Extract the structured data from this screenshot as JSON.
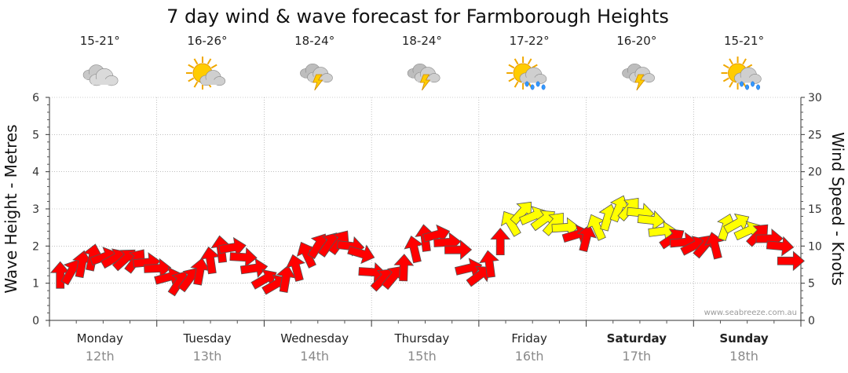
{
  "chart_data": {
    "type": "line",
    "title": "7 day wind & wave forecast for Farmborough Heights",
    "ylabel_left": "Wave Height - Metres",
    "ylabel_right": "Wind Speed - Knots",
    "ylim_left": [
      0,
      6
    ],
    "ylim_right": [
      0,
      30
    ],
    "left_ticks": [
      "0",
      "1",
      "2",
      "3",
      "4",
      "5",
      "6"
    ],
    "right_ticks": [
      "0",
      "5",
      "10",
      "15",
      "20",
      "25",
      "30"
    ],
    "grid": true,
    "credit": "www.seabreeze.com.au",
    "days": [
      {
        "name": "Monday",
        "date": "12th",
        "temp": "15-21°",
        "icon": "cloudy-icon",
        "bold": false
      },
      {
        "name": "Tuesday",
        "date": "13th",
        "temp": "16-26°",
        "icon": "partly-sunny-icon",
        "bold": false
      },
      {
        "name": "Wednesday",
        "date": "14th",
        "temp": "18-24°",
        "icon": "thunderstorm-icon",
        "bold": false
      },
      {
        "name": "Thursday",
        "date": "15th",
        "temp": "18-24°",
        "icon": "thunderstorm-icon",
        "bold": false
      },
      {
        "name": "Friday",
        "date": "16th",
        "temp": "17-22°",
        "icon": "sun-showers-icon",
        "bold": false
      },
      {
        "name": "Saturday",
        "date": "17th",
        "temp": "16-20°",
        "icon": "thunderstorm-icon",
        "bold": true
      },
      {
        "name": "Sunday",
        "date": "18th",
        "temp": "15-21°",
        "icon": "sun-showers-icon",
        "bold": true
      }
    ],
    "colors": {
      "light_wind": "#ff0000",
      "strong_wind": "#ffff00",
      "arrow_outline": "#555555",
      "grid": "#999999"
    },
    "series": [
      {
        "name": "wind",
        "note": "x = day offset from Monday 00:00 (days); y = wind speed (knots)",
        "points": [
          {
            "x": 0.1,
            "y": 6.0,
            "c": "red"
          },
          {
            "x": 0.2,
            "y": 6.5,
            "c": "red"
          },
          {
            "x": 0.3,
            "y": 7.5,
            "c": "red"
          },
          {
            "x": 0.4,
            "y": 8.4,
            "c": "red"
          },
          {
            "x": 0.5,
            "y": 8.5,
            "c": "red"
          },
          {
            "x": 0.6,
            "y": 8.3,
            "c": "red"
          },
          {
            "x": 0.7,
            "y": 8.2,
            "c": "red"
          },
          {
            "x": 0.8,
            "y": 8.0,
            "c": "red"
          },
          {
            "x": 0.9,
            "y": 7.8,
            "c": "red"
          },
          {
            "x": 1.0,
            "y": 7.0,
            "c": "red"
          },
          {
            "x": 1.1,
            "y": 5.8,
            "c": "red"
          },
          {
            "x": 1.2,
            "y": 5.0,
            "c": "red"
          },
          {
            "x": 1.3,
            "y": 5.5,
            "c": "red"
          },
          {
            "x": 1.4,
            "y": 6.5,
            "c": "red"
          },
          {
            "x": 1.5,
            "y": 8.0,
            "c": "red"
          },
          {
            "x": 1.6,
            "y": 9.5,
            "c": "red"
          },
          {
            "x": 1.7,
            "y": 9.8,
            "c": "red"
          },
          {
            "x": 1.8,
            "y": 8.5,
            "c": "red"
          },
          {
            "x": 1.9,
            "y": 7.0,
            "c": "red"
          },
          {
            "x": 2.0,
            "y": 5.5,
            "c": "red"
          },
          {
            "x": 2.1,
            "y": 4.8,
            "c": "red"
          },
          {
            "x": 2.2,
            "y": 5.5,
            "c": "red"
          },
          {
            "x": 2.3,
            "y": 7.0,
            "c": "red"
          },
          {
            "x": 2.4,
            "y": 8.8,
            "c": "red"
          },
          {
            "x": 2.5,
            "y": 10.0,
            "c": "red"
          },
          {
            "x": 2.6,
            "y": 10.2,
            "c": "red"
          },
          {
            "x": 2.7,
            "y": 10.5,
            "c": "red"
          },
          {
            "x": 2.8,
            "y": 10.0,
            "c": "red"
          },
          {
            "x": 2.9,
            "y": 9.0,
            "c": "red"
          },
          {
            "x": 3.0,
            "y": 6.5,
            "c": "red"
          },
          {
            "x": 3.1,
            "y": 5.5,
            "c": "red"
          },
          {
            "x": 3.2,
            "y": 5.8,
            "c": "red"
          },
          {
            "x": 3.3,
            "y": 7.0,
            "c": "red"
          },
          {
            "x": 3.4,
            "y": 9.5,
            "c": "red"
          },
          {
            "x": 3.5,
            "y": 11.0,
            "c": "red"
          },
          {
            "x": 3.6,
            "y": 11.5,
            "c": "red"
          },
          {
            "x": 3.7,
            "y": 10.5,
            "c": "red"
          },
          {
            "x": 3.8,
            "y": 9.5,
            "c": "red"
          },
          {
            "x": 3.9,
            "y": 7.0,
            "c": "red"
          },
          {
            "x": 4.0,
            "y": 6.0,
            "c": "red"
          },
          {
            "x": 4.1,
            "y": 7.5,
            "c": "red"
          },
          {
            "x": 4.2,
            "y": 10.5,
            "c": "red"
          },
          {
            "x": 4.3,
            "y": 13.0,
            "c": "yellow"
          },
          {
            "x": 4.4,
            "y": 14.5,
            "c": "yellow"
          },
          {
            "x": 4.5,
            "y": 14.0,
            "c": "yellow"
          },
          {
            "x": 4.6,
            "y": 13.5,
            "c": "yellow"
          },
          {
            "x": 4.7,
            "y": 13.0,
            "c": "yellow"
          },
          {
            "x": 4.8,
            "y": 12.5,
            "c": "yellow"
          },
          {
            "x": 4.9,
            "y": 11.5,
            "c": "red"
          },
          {
            "x": 5.0,
            "y": 11.0,
            "c": "red"
          },
          {
            "x": 5.1,
            "y": 12.5,
            "c": "yellow"
          },
          {
            "x": 5.2,
            "y": 13.8,
            "c": "yellow"
          },
          {
            "x": 5.3,
            "y": 15.0,
            "c": "yellow"
          },
          {
            "x": 5.4,
            "y": 15.0,
            "c": "yellow"
          },
          {
            "x": 5.5,
            "y": 14.5,
            "c": "yellow"
          },
          {
            "x": 5.6,
            "y": 13.5,
            "c": "yellow"
          },
          {
            "x": 5.7,
            "y": 12.0,
            "c": "yellow"
          },
          {
            "x": 5.8,
            "y": 11.0,
            "c": "red"
          },
          {
            "x": 5.9,
            "y": 10.5,
            "c": "red"
          },
          {
            "x": 6.0,
            "y": 10.0,
            "c": "red"
          },
          {
            "x": 6.1,
            "y": 10.0,
            "c": "red"
          },
          {
            "x": 6.2,
            "y": 10.0,
            "c": "red"
          },
          {
            "x": 6.3,
            "y": 12.5,
            "c": "yellow"
          },
          {
            "x": 6.4,
            "y": 13.0,
            "c": "yellow"
          },
          {
            "x": 6.5,
            "y": 12.0,
            "c": "yellow"
          },
          {
            "x": 6.6,
            "y": 11.5,
            "c": "red"
          },
          {
            "x": 6.7,
            "y": 11.0,
            "c": "red"
          },
          {
            "x": 6.8,
            "y": 10.0,
            "c": "red"
          },
          {
            "x": 6.9,
            "y": 8.0,
            "c": "red"
          }
        ]
      }
    ]
  }
}
